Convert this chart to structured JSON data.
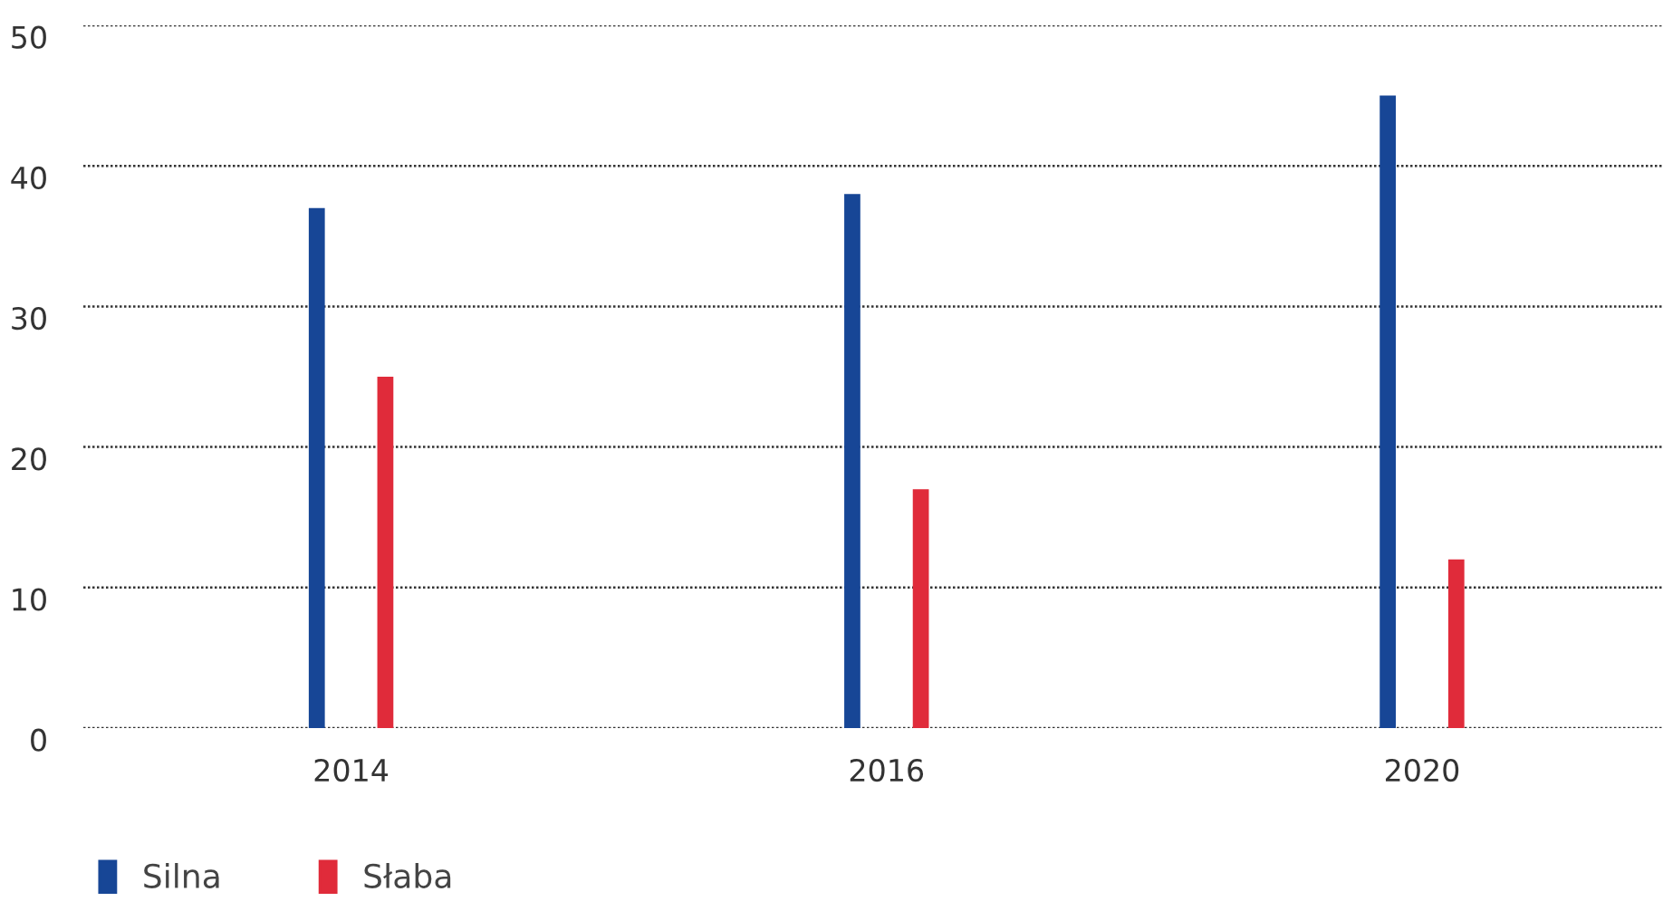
{
  "chart_data": {
    "type": "bar",
    "categories": [
      "2014",
      "2016",
      "2020"
    ],
    "series": [
      {
        "name": "Silna",
        "color": "#174696",
        "values": [
          37,
          38,
          45
        ]
      },
      {
        "name": "Słaba",
        "color": "#e02b3a",
        "values": [
          25,
          17,
          12
        ]
      }
    ],
    "ylim": [
      0,
      50
    ],
    "yticks": [
      0,
      10,
      20,
      30,
      40,
      50
    ],
    "grid": "y",
    "legend": "bottom left"
  }
}
